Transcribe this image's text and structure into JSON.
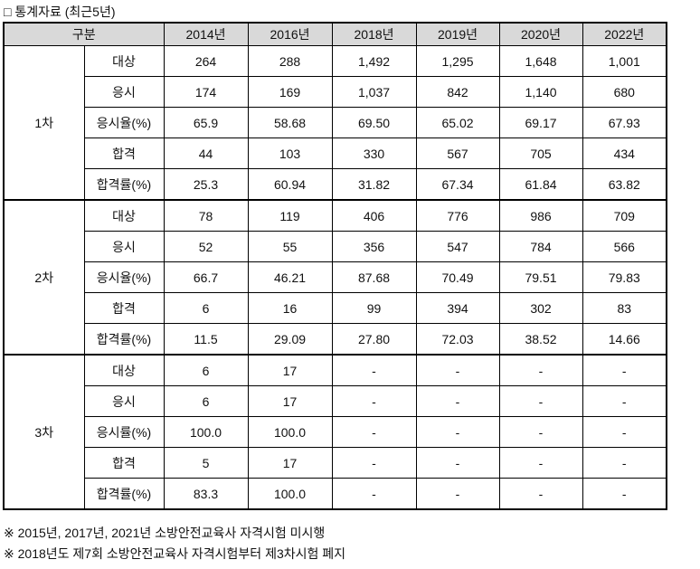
{
  "title": "□ 통계자료 (최근5년)",
  "table": {
    "header": {
      "label": "구분",
      "years": [
        "2014년",
        "2016년",
        "2018년",
        "2019년",
        "2020년",
        "2022년"
      ]
    },
    "groups": [
      {
        "name": "1차",
        "rows": [
          {
            "label": "대상",
            "values": [
              "264",
              "288",
              "1,492",
              "1,295",
              "1,648",
              "1,001"
            ]
          },
          {
            "label": "응시",
            "values": [
              "174",
              "169",
              "1,037",
              "842",
              "1,140",
              "680"
            ]
          },
          {
            "label": "응시율(%)",
            "values": [
              "65.9",
              "58.68",
              "69.50",
              "65.02",
              "69.17",
              "67.93"
            ]
          },
          {
            "label": "합격",
            "values": [
              "44",
              "103",
              "330",
              "567",
              "705",
              "434"
            ]
          },
          {
            "label": "합격률(%)",
            "values": [
              "25.3",
              "60.94",
              "31.82",
              "67.34",
              "61.84",
              "63.82"
            ]
          }
        ]
      },
      {
        "name": "2차",
        "rows": [
          {
            "label": "대상",
            "values": [
              "78",
              "119",
              "406",
              "776",
              "986",
              "709"
            ]
          },
          {
            "label": "응시",
            "values": [
              "52",
              "55",
              "356",
              "547",
              "784",
              "566"
            ]
          },
          {
            "label": "응시율(%)",
            "values": [
              "66.7",
              "46.21",
              "87.68",
              "70.49",
              "79.51",
              "79.83"
            ]
          },
          {
            "label": "합격",
            "values": [
              "6",
              "16",
              "99",
              "394",
              "302",
              "83"
            ]
          },
          {
            "label": "합격률(%)",
            "values": [
              "11.5",
              "29.09",
              "27.80",
              "72.03",
              "38.52",
              "14.66"
            ]
          }
        ]
      },
      {
        "name": "3차",
        "rows": [
          {
            "label": "대상",
            "values": [
              "6",
              "17",
              "-",
              "-",
              "-",
              "-"
            ]
          },
          {
            "label": "응시",
            "values": [
              "6",
              "17",
              "-",
              "-",
              "-",
              "-"
            ]
          },
          {
            "label": "응시률(%)",
            "values": [
              "100.0",
              "100.0",
              "-",
              "-",
              "-",
              "-"
            ]
          },
          {
            "label": "합격",
            "values": [
              "5",
              "17",
              "-",
              "-",
              "-",
              "-"
            ]
          },
          {
            "label": "합격률(%)",
            "values": [
              "83.3",
              "100.0",
              "-",
              "-",
              "-",
              "-"
            ]
          }
        ]
      }
    ]
  },
  "footnotes": [
    "※ 2015년, 2017년, 2021년 소방안전교육사 자격시험 미시행",
    "※ 2018년도 제7회 소방안전교육사 자격시험부터 제3차시험 폐지"
  ],
  "colors": {
    "header_bg": "#d9d9d9",
    "border": "#000000",
    "text": "#111111"
  }
}
